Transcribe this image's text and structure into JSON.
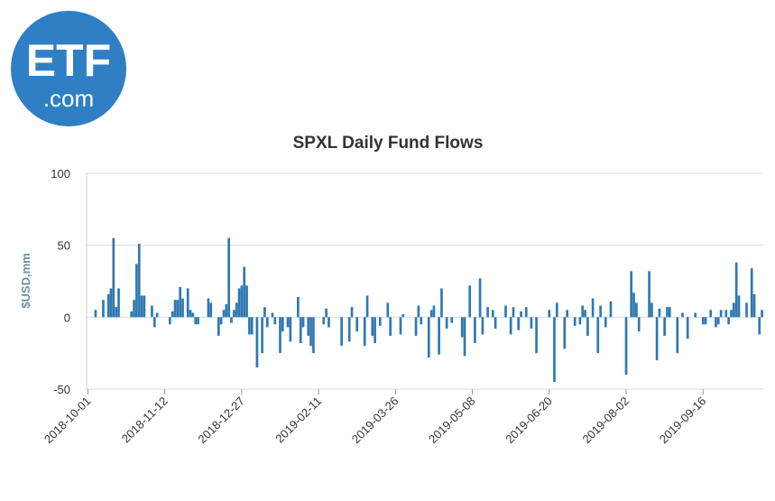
{
  "logo": {
    "top": "ETF",
    "bottom": ".com"
  },
  "chart_data": {
    "type": "bar",
    "title": "SPXL Daily Fund Flows",
    "y_label": "$USD,mm",
    "color": "#2f78b1",
    "ylim": [
      -50,
      100
    ],
    "yticks": [
      -50,
      0,
      50,
      100
    ],
    "grid": true,
    "categories": [
      "2018-10-01",
      null,
      null,
      null,
      null,
      null,
      null,
      null,
      null,
      null,
      null,
      null,
      null,
      null,
      null,
      null,
      null,
      null,
      null,
      null,
      null,
      null,
      null,
      null,
      null,
      null,
      null,
      null,
      null,
      null,
      "2018-11-12",
      null,
      null,
      null,
      null,
      null,
      null,
      null,
      null,
      null,
      null,
      null,
      null,
      null,
      null,
      null,
      null,
      null,
      null,
      null,
      null,
      null,
      null,
      null,
      null,
      null,
      null,
      null,
      null,
      null,
      "2018-12-27",
      null,
      null,
      null,
      null,
      null,
      null,
      null,
      null,
      null,
      null,
      null,
      null,
      null,
      null,
      null,
      null,
      null,
      null,
      null,
      null,
      null,
      null,
      null,
      null,
      null,
      null,
      null,
      null,
      null,
      "2019-02-11",
      null,
      null,
      null,
      null,
      null,
      null,
      null,
      null,
      null,
      null,
      null,
      null,
      null,
      null,
      null,
      null,
      null,
      null,
      null,
      null,
      null,
      null,
      null,
      null,
      null,
      null,
      null,
      null,
      null,
      "2019-03-26",
      null,
      null,
      null,
      null,
      null,
      null,
      null,
      null,
      null,
      null,
      null,
      null,
      null,
      null,
      null,
      null,
      null,
      null,
      null,
      null,
      null,
      null,
      null,
      null,
      null,
      null,
      null,
      null,
      null,
      "2019-05-08",
      null,
      null,
      null,
      null,
      null,
      null,
      null,
      null,
      null,
      null,
      null,
      null,
      null,
      null,
      null,
      null,
      null,
      null,
      null,
      null,
      null,
      null,
      null,
      null,
      null,
      null,
      null,
      null,
      null,
      "2019-06-20",
      null,
      null,
      null,
      null,
      null,
      null,
      null,
      null,
      null,
      null,
      null,
      null,
      null,
      null,
      null,
      null,
      null,
      null,
      null,
      null,
      null,
      null,
      null,
      null,
      null,
      null,
      null,
      null,
      null,
      "2019-08-02",
      null,
      null,
      null,
      null,
      null,
      null,
      null,
      null,
      null,
      null,
      null,
      null,
      null,
      null,
      null,
      null,
      null,
      null,
      null,
      null,
      null,
      null,
      null,
      null,
      null,
      null,
      null,
      null,
      null,
      "2019-09-16",
      null,
      null,
      null,
      null,
      null,
      null,
      null,
      null,
      null,
      null,
      null,
      null,
      null,
      null,
      null,
      null,
      null,
      null,
      null,
      null,
      null,
      null,
      null
    ],
    "values": [
      0,
      0,
      0,
      5,
      0,
      0,
      12,
      0,
      16,
      20,
      55,
      7,
      20,
      0,
      0,
      0,
      0,
      4,
      12,
      37,
      51,
      15,
      15,
      0,
      0,
      8,
      -7,
      3,
      0,
      0,
      0,
      0,
      -5,
      4,
      12,
      12,
      21,
      13,
      0,
      20,
      5,
      3,
      -5,
      -5,
      0,
      0,
      0,
      13,
      10,
      0,
      0,
      -13,
      -5,
      5,
      9,
      55,
      -4,
      5,
      10,
      20,
      22,
      35,
      22,
      -12,
      -12,
      0,
      -35,
      0,
      -25,
      7,
      -7,
      0,
      3,
      -5,
      0,
      -25,
      -10,
      0,
      -7,
      -17,
      0,
      0,
      14,
      -18,
      -7,
      0,
      -13,
      -20,
      -25,
      0,
      0,
      0,
      -5,
      6,
      -7,
      0,
      0,
      0,
      0,
      -20,
      0,
      0,
      -17,
      7,
      0,
      -10,
      0,
      0,
      -20,
      15,
      0,
      -13,
      -18,
      0,
      -6,
      0,
      0,
      10,
      -13,
      0,
      0,
      0,
      -12,
      2,
      0,
      0,
      0,
      0,
      -13,
      8,
      -5,
      0,
      0,
      -28,
      5,
      8,
      0,
      -26,
      20,
      0,
      -8,
      0,
      -4,
      0,
      0,
      0,
      -14,
      -27,
      0,
      22,
      0,
      -18,
      0,
      27,
      -12,
      0,
      7,
      0,
      5,
      -8,
      0,
      0,
      0,
      8,
      0,
      -12,
      7,
      0,
      -9,
      4,
      0,
      7,
      0,
      -8,
      0,
      -25,
      0,
      0,
      0,
      0,
      5,
      0,
      -45,
      10,
      0,
      0,
      -22,
      5,
      0,
      0,
      -6,
      0,
      -5,
      8,
      5,
      -13,
      0,
      13,
      0,
      -25,
      8,
      0,
      -7,
      0,
      11,
      0,
      0,
      0,
      0,
      0,
      -40,
      0,
      32,
      17,
      10,
      -10,
      0,
      0,
      0,
      32,
      10,
      0,
      -30,
      6,
      0,
      -13,
      7,
      7,
      0,
      0,
      -25,
      0,
      3,
      0,
      -15,
      0,
      0,
      3,
      0,
      0,
      -5,
      -5,
      0,
      5,
      0,
      -7,
      -5,
      5,
      0,
      5,
      -5,
      5,
      10,
      38,
      15,
      0,
      0,
      10,
      0,
      34,
      16,
      0,
      -12,
      5
    ]
  }
}
